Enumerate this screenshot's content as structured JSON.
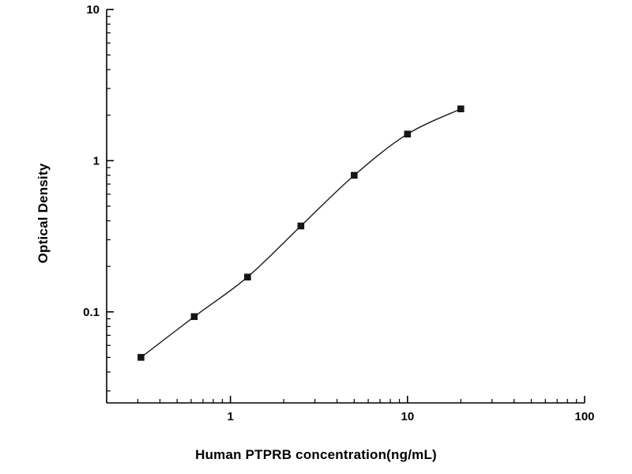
{
  "chart_data": {
    "type": "scatter",
    "title": "",
    "xlabel": "Human PTPRB concentration(ng/mL)",
    "ylabel": "Optical Density",
    "xscale": "log",
    "yscale": "log",
    "xlim": [
      0.2,
      100
    ],
    "ylim": [
      0.025,
      10
    ],
    "x": [
      0.3125,
      0.625,
      1.25,
      2.5,
      5,
      10,
      20
    ],
    "y": [
      0.05,
      0.093,
      0.17,
      0.37,
      0.8,
      1.5,
      2.2
    ],
    "x_ticks": [
      {
        "v": 1,
        "label": "1"
      },
      {
        "v": 10,
        "label": "10"
      },
      {
        "v": 100,
        "label": "100"
      }
    ],
    "y_ticks": [
      {
        "v": 0.1,
        "label": "0.1"
      },
      {
        "v": 1,
        "label": "1"
      },
      {
        "v": 10,
        "label": "10"
      }
    ],
    "marker": "square",
    "line": true,
    "legend": "none",
    "grid": false,
    "colors": {
      "axis": "#000000",
      "marker": "#161616",
      "line": "#1a1a1a",
      "background": "#ffffff"
    }
  }
}
